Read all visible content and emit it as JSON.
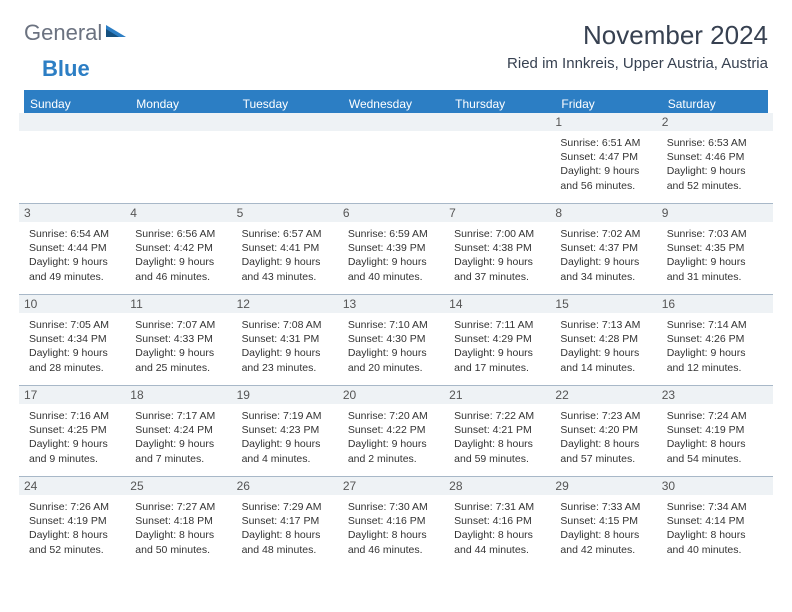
{
  "logo": {
    "text_general": "General",
    "text_blue": "Blue",
    "icon_color": "#2c7ec4"
  },
  "header": {
    "month_title": "November 2024",
    "location": "Ried im Innkreis, Upper Austria, Austria"
  },
  "colors": {
    "header_bg": "#2c7ec4",
    "strip_bg": "#eef2f5",
    "border": "#a8b8c8",
    "text": "#333333",
    "logo_gray": "#6b7280"
  },
  "days_of_week": [
    "Sunday",
    "Monday",
    "Tuesday",
    "Wednesday",
    "Thursday",
    "Friday",
    "Saturday"
  ],
  "weeks": [
    [
      null,
      null,
      null,
      null,
      null,
      {
        "n": "1",
        "sunrise": "Sunrise: 6:51 AM",
        "sunset": "Sunset: 4:47 PM",
        "day1": "Daylight: 9 hours",
        "day2": "and 56 minutes."
      },
      {
        "n": "2",
        "sunrise": "Sunrise: 6:53 AM",
        "sunset": "Sunset: 4:46 PM",
        "day1": "Daylight: 9 hours",
        "day2": "and 52 minutes."
      }
    ],
    [
      {
        "n": "3",
        "sunrise": "Sunrise: 6:54 AM",
        "sunset": "Sunset: 4:44 PM",
        "day1": "Daylight: 9 hours",
        "day2": "and 49 minutes."
      },
      {
        "n": "4",
        "sunrise": "Sunrise: 6:56 AM",
        "sunset": "Sunset: 4:42 PM",
        "day1": "Daylight: 9 hours",
        "day2": "and 46 minutes."
      },
      {
        "n": "5",
        "sunrise": "Sunrise: 6:57 AM",
        "sunset": "Sunset: 4:41 PM",
        "day1": "Daylight: 9 hours",
        "day2": "and 43 minutes."
      },
      {
        "n": "6",
        "sunrise": "Sunrise: 6:59 AM",
        "sunset": "Sunset: 4:39 PM",
        "day1": "Daylight: 9 hours",
        "day2": "and 40 minutes."
      },
      {
        "n": "7",
        "sunrise": "Sunrise: 7:00 AM",
        "sunset": "Sunset: 4:38 PM",
        "day1": "Daylight: 9 hours",
        "day2": "and 37 minutes."
      },
      {
        "n": "8",
        "sunrise": "Sunrise: 7:02 AM",
        "sunset": "Sunset: 4:37 PM",
        "day1": "Daylight: 9 hours",
        "day2": "and 34 minutes."
      },
      {
        "n": "9",
        "sunrise": "Sunrise: 7:03 AM",
        "sunset": "Sunset: 4:35 PM",
        "day1": "Daylight: 9 hours",
        "day2": "and 31 minutes."
      }
    ],
    [
      {
        "n": "10",
        "sunrise": "Sunrise: 7:05 AM",
        "sunset": "Sunset: 4:34 PM",
        "day1": "Daylight: 9 hours",
        "day2": "and 28 minutes."
      },
      {
        "n": "11",
        "sunrise": "Sunrise: 7:07 AM",
        "sunset": "Sunset: 4:33 PM",
        "day1": "Daylight: 9 hours",
        "day2": "and 25 minutes."
      },
      {
        "n": "12",
        "sunrise": "Sunrise: 7:08 AM",
        "sunset": "Sunset: 4:31 PM",
        "day1": "Daylight: 9 hours",
        "day2": "and 23 minutes."
      },
      {
        "n": "13",
        "sunrise": "Sunrise: 7:10 AM",
        "sunset": "Sunset: 4:30 PM",
        "day1": "Daylight: 9 hours",
        "day2": "and 20 minutes."
      },
      {
        "n": "14",
        "sunrise": "Sunrise: 7:11 AM",
        "sunset": "Sunset: 4:29 PM",
        "day1": "Daylight: 9 hours",
        "day2": "and 17 minutes."
      },
      {
        "n": "15",
        "sunrise": "Sunrise: 7:13 AM",
        "sunset": "Sunset: 4:28 PM",
        "day1": "Daylight: 9 hours",
        "day2": "and 14 minutes."
      },
      {
        "n": "16",
        "sunrise": "Sunrise: 7:14 AM",
        "sunset": "Sunset: 4:26 PM",
        "day1": "Daylight: 9 hours",
        "day2": "and 12 minutes."
      }
    ],
    [
      {
        "n": "17",
        "sunrise": "Sunrise: 7:16 AM",
        "sunset": "Sunset: 4:25 PM",
        "day1": "Daylight: 9 hours",
        "day2": "and 9 minutes."
      },
      {
        "n": "18",
        "sunrise": "Sunrise: 7:17 AM",
        "sunset": "Sunset: 4:24 PM",
        "day1": "Daylight: 9 hours",
        "day2": "and 7 minutes."
      },
      {
        "n": "19",
        "sunrise": "Sunrise: 7:19 AM",
        "sunset": "Sunset: 4:23 PM",
        "day1": "Daylight: 9 hours",
        "day2": "and 4 minutes."
      },
      {
        "n": "20",
        "sunrise": "Sunrise: 7:20 AM",
        "sunset": "Sunset: 4:22 PM",
        "day1": "Daylight: 9 hours",
        "day2": "and 2 minutes."
      },
      {
        "n": "21",
        "sunrise": "Sunrise: 7:22 AM",
        "sunset": "Sunset: 4:21 PM",
        "day1": "Daylight: 8 hours",
        "day2": "and 59 minutes."
      },
      {
        "n": "22",
        "sunrise": "Sunrise: 7:23 AM",
        "sunset": "Sunset: 4:20 PM",
        "day1": "Daylight: 8 hours",
        "day2": "and 57 minutes."
      },
      {
        "n": "23",
        "sunrise": "Sunrise: 7:24 AM",
        "sunset": "Sunset: 4:19 PM",
        "day1": "Daylight: 8 hours",
        "day2": "and 54 minutes."
      }
    ],
    [
      {
        "n": "24",
        "sunrise": "Sunrise: 7:26 AM",
        "sunset": "Sunset: 4:19 PM",
        "day1": "Daylight: 8 hours",
        "day2": "and 52 minutes."
      },
      {
        "n": "25",
        "sunrise": "Sunrise: 7:27 AM",
        "sunset": "Sunset: 4:18 PM",
        "day1": "Daylight: 8 hours",
        "day2": "and 50 minutes."
      },
      {
        "n": "26",
        "sunrise": "Sunrise: 7:29 AM",
        "sunset": "Sunset: 4:17 PM",
        "day1": "Daylight: 8 hours",
        "day2": "and 48 minutes."
      },
      {
        "n": "27",
        "sunrise": "Sunrise: 7:30 AM",
        "sunset": "Sunset: 4:16 PM",
        "day1": "Daylight: 8 hours",
        "day2": "and 46 minutes."
      },
      {
        "n": "28",
        "sunrise": "Sunrise: 7:31 AM",
        "sunset": "Sunset: 4:16 PM",
        "day1": "Daylight: 8 hours",
        "day2": "and 44 minutes."
      },
      {
        "n": "29",
        "sunrise": "Sunrise: 7:33 AM",
        "sunset": "Sunset: 4:15 PM",
        "day1": "Daylight: 8 hours",
        "day2": "and 42 minutes."
      },
      {
        "n": "30",
        "sunrise": "Sunrise: 7:34 AM",
        "sunset": "Sunset: 4:14 PM",
        "day1": "Daylight: 8 hours",
        "day2": "and 40 minutes."
      }
    ]
  ]
}
